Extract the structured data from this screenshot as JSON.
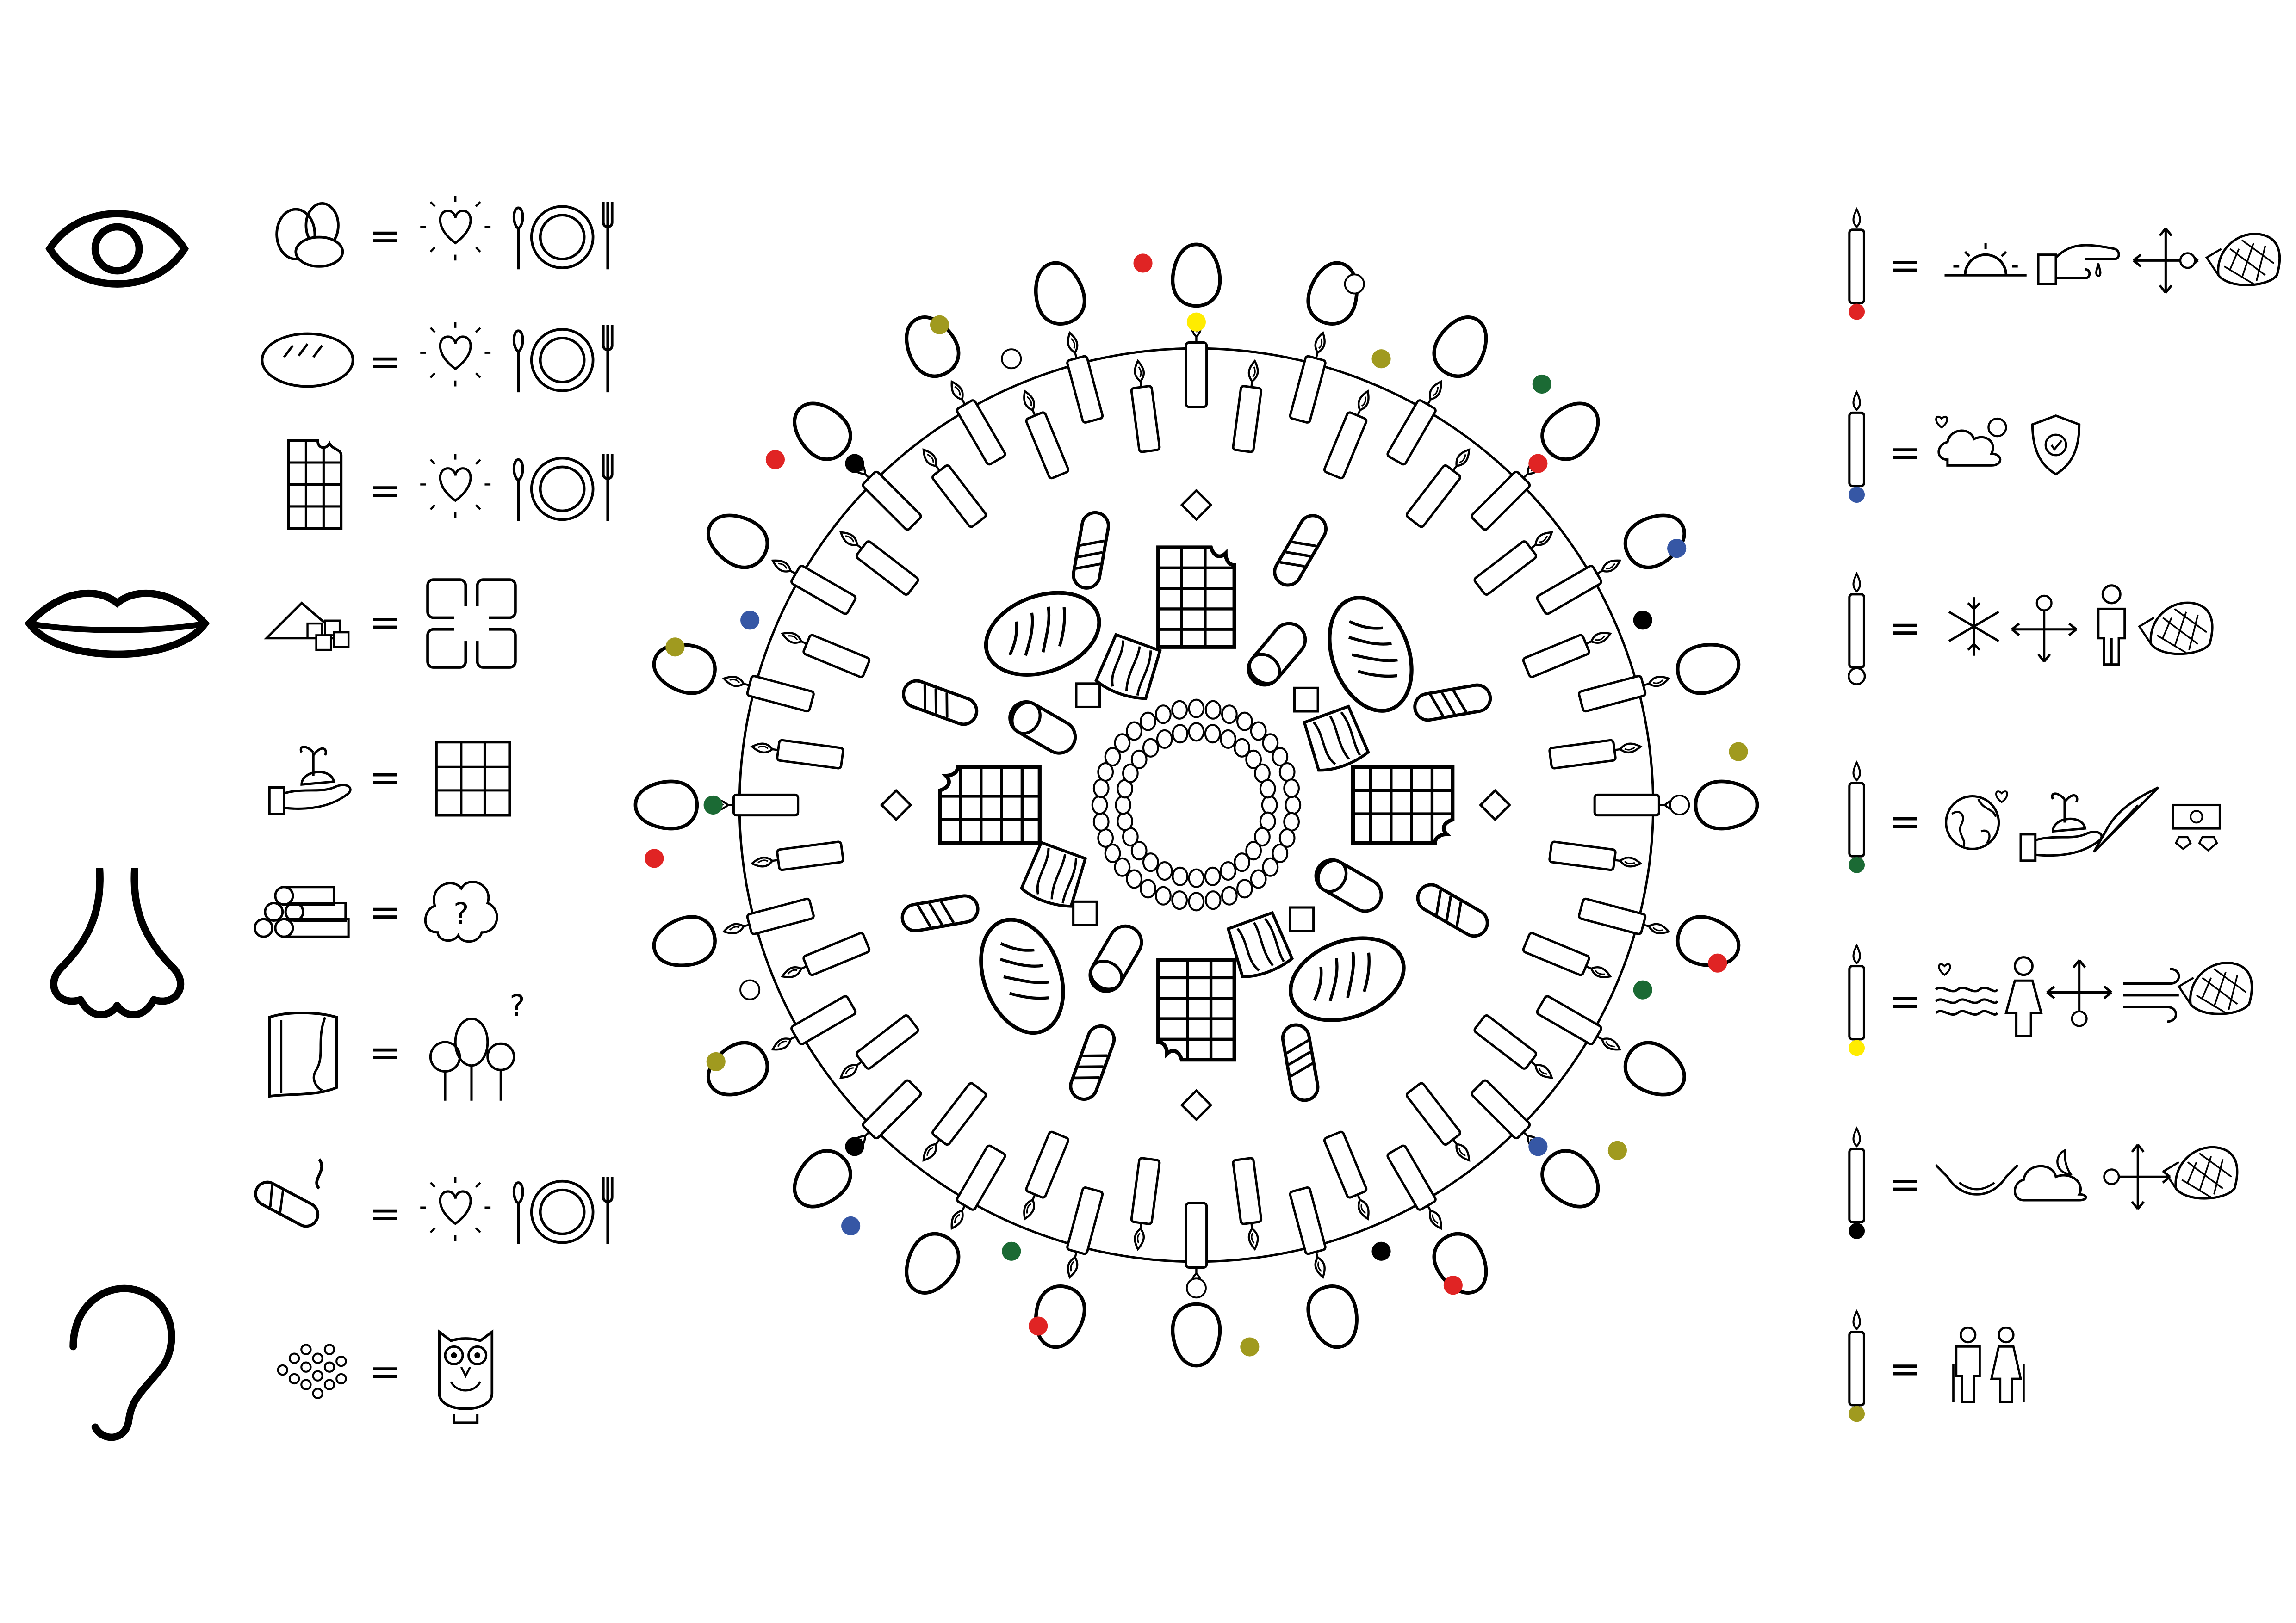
{
  "equals_symbol": "=",
  "owl_note": "?",
  "left_legend": {
    "senses": [
      {
        "name": "sight",
        "icon": "eye-icon"
      },
      {
        "name": "taste",
        "icon": "lips-icon"
      },
      {
        "name": "smell",
        "icon": "nose-icon"
      },
      {
        "name": "hearing",
        "icon": "ear-icon"
      }
    ],
    "rows": [
      {
        "item": "eggs-icon",
        "meaning": [
          "love-icon",
          "plate-icon"
        ]
      },
      {
        "item": "bread-icon",
        "meaning": [
          "love-icon",
          "plate-icon"
        ]
      },
      {
        "item": "chocolate-icon",
        "meaning": [
          "love-icon",
          "plate-icon"
        ]
      },
      {
        "item": "sugar-cubes-icon",
        "meaning": [
          "union-icon"
        ]
      },
      {
        "item": "cacao-hand-icon",
        "meaning": [
          "chocolate-icon"
        ]
      },
      {
        "item": "logs-icon",
        "meaning": [
          "thought-icon"
        ]
      },
      {
        "item": "bark-icon",
        "meaning": [
          "forest-question-icon"
        ]
      },
      {
        "item": "cigar-icon",
        "meaning": [
          "love-icon",
          "plate-icon"
        ]
      },
      {
        "item": "seeds-icon",
        "meaning": [
          "owl-icon"
        ]
      }
    ]
  },
  "right_legend": {
    "rows": [
      {
        "candle_dot_color": "#e02424",
        "meaning": [
          "sunrise-icon",
          "pointing-hand-icon",
          "cross-arrows-east-icon",
          "corn-icon"
        ]
      },
      {
        "candle_dot_color": "#3657a5",
        "meaning": [
          "cloud-heart-icon",
          "shield-icon"
        ]
      },
      {
        "candle_dot_color": "#ffffff",
        "meaning": [
          "snowflake-icon",
          "cross-arrows-north-icon",
          "man-icon",
          "corn-icon"
        ]
      },
      {
        "candle_dot_color": "#1b6a34",
        "meaning": [
          "earth-icon",
          "sprout-hand-icon",
          "feather-icon",
          "money-gems-icon"
        ]
      },
      {
        "candle_dot_color": "#ffec00",
        "meaning": [
          "water-heart-icon",
          "woman-icon",
          "cross-arrows-south-icon",
          "wind-icon",
          "corn-icon"
        ]
      },
      {
        "candle_dot_color": "#000000",
        "meaning": [
          "hammock-icon",
          "moon-cloud-icon",
          "cross-arrows-west-icon",
          "corn-icon"
        ]
      },
      {
        "candle_dot_color": "#a09a1f",
        "meaning": [
          "elders-icon"
        ]
      }
    ]
  },
  "mandala": {
    "outer_ring_colors_clockwise_from_top": [
      "#ffec00",
      "#fff",
      "#a09a1f",
      "#1b6a34",
      "#e02424",
      "#3657a5",
      "#000000",
      "#a09a1f",
      "#fff",
      "#e02424",
      "#1b6a34",
      "#a09a1f",
      "#3657a5",
      "#e02424",
      "#000000",
      "#a09a1f",
      "#fff",
      "#e02424",
      "#1b6a34",
      "#3657a5",
      "#000000",
      "#a09a1f",
      "#fff",
      "#e02424",
      "#1b6a34",
      "#a09a1f",
      "#3657a5",
      "#e02424",
      "#000000",
      "#a09a1f",
      "#fff",
      "#e02424"
    ]
  },
  "colors": {
    "red": "#e02424",
    "blue": "#3657a5",
    "green": "#1b6a34",
    "yellow": "#ffec00",
    "black": "#000000",
    "olive": "#a09a1f",
    "white": "#ffffff"
  }
}
